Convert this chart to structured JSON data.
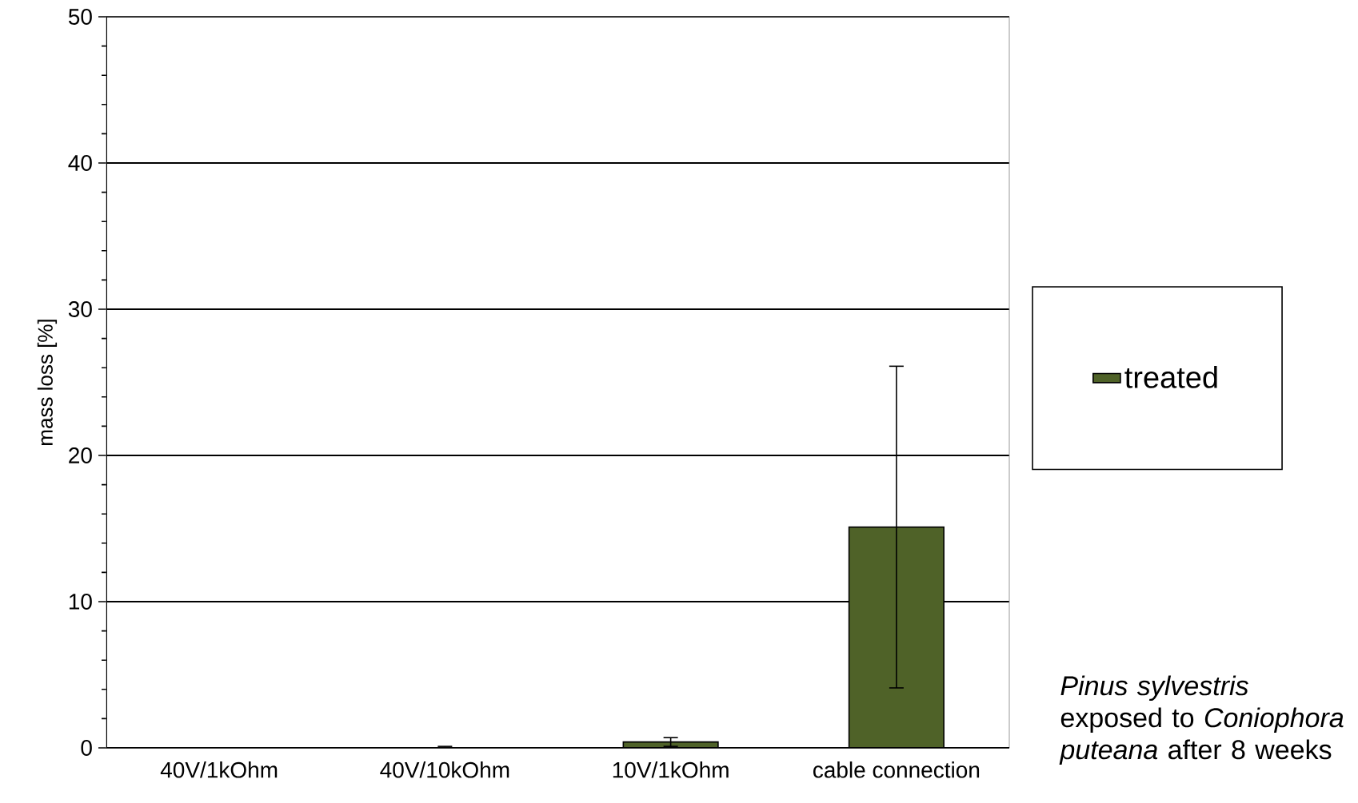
{
  "chart_data": {
    "type": "bar",
    "ylabel": "mass loss [%]",
    "categories": [
      "40V/1kOhm",
      "40V/10kOhm",
      "10V/1kOhm",
      "cable connection"
    ],
    "series": [
      {
        "name": "treated",
        "color": "#4f6228",
        "values": [
          0,
          0,
          0.4,
          15.1
        ],
        "errors": [
          null,
          0.1,
          0.3,
          11.0
        ]
      }
    ],
    "ylim": [
      0,
      50
    ],
    "yticks": [
      0,
      10,
      20,
      30,
      40,
      50
    ],
    "grid": "y",
    "legend": "right",
    "annotations": [
      "*Pinus sylvestris* exposed to *Coniophora puteana* after 8 weeks"
    ]
  }
}
